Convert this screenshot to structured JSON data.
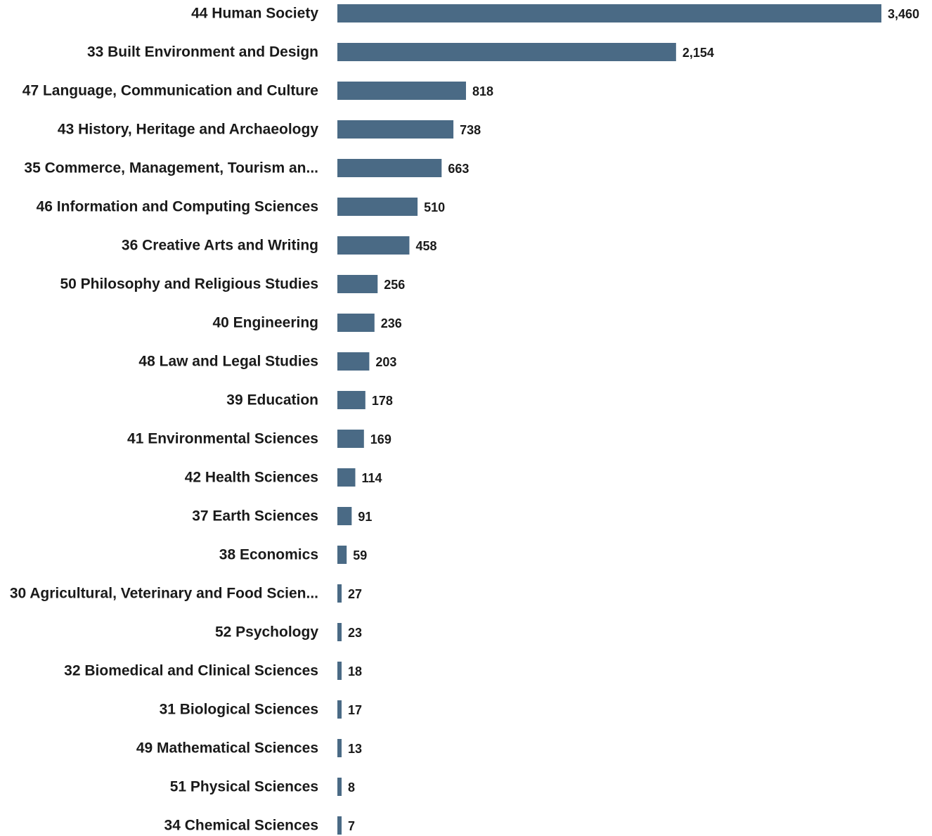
{
  "chart_data": {
    "type": "bar",
    "orientation": "horizontal",
    "title": "",
    "xlabel": "",
    "ylabel": "",
    "grid": false,
    "legend": "none",
    "bar_color": "#4a6a85",
    "xlim": [
      0,
      3460
    ],
    "categories": [
      "44 Human Society",
      "33 Built Environment and Design",
      "47 Language, Communication and Culture",
      "43 History, Heritage and Archaeology",
      "35 Commerce, Management, Tourism an...",
      "46 Information and Computing Sciences",
      "36 Creative Arts and Writing",
      "50 Philosophy and Religious Studies",
      "40 Engineering",
      "48 Law and Legal Studies",
      "39 Education",
      "41 Environmental Sciences",
      "42 Health Sciences",
      "37 Earth Sciences",
      "38 Economics",
      "30 Agricultural, Veterinary and Food Scien...",
      "52 Psychology",
      "32 Biomedical and Clinical Sciences",
      "31 Biological Sciences",
      "49 Mathematical Sciences",
      "51 Physical Sciences",
      "34 Chemical Sciences"
    ],
    "values": [
      3460,
      2154,
      818,
      738,
      663,
      510,
      458,
      256,
      236,
      203,
      178,
      169,
      114,
      91,
      59,
      27,
      23,
      18,
      17,
      13,
      8,
      7
    ],
    "value_labels": [
      "3,460",
      "2,154",
      "818",
      "738",
      "663",
      "510",
      "458",
      "256",
      "236",
      "203",
      "178",
      "169",
      "114",
      "91",
      "59",
      "27",
      "23",
      "18",
      "17",
      "13",
      "8",
      "7"
    ]
  }
}
